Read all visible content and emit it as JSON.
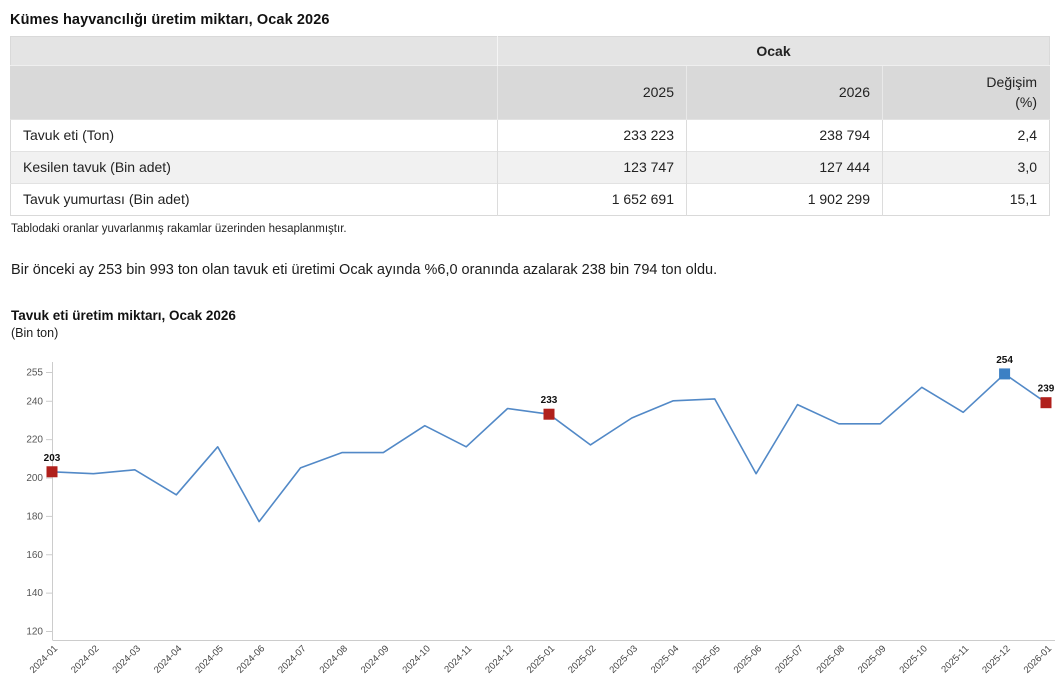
{
  "page": {
    "title": "Kümes hayvancılığı üretim miktarı, Ocak 2026",
    "footnote": "Tablodaki oranlar yuvarlanmış rakamlar üzerinden hesaplanmıştır.",
    "paragraph": "Bir önceki ay 253 bin 993 ton olan tavuk eti üretimi Ocak ayında %6,0 oranında azalarak 238 bin 794 ton oldu."
  },
  "table": {
    "group_header": "Ocak",
    "col_2025": "2025",
    "col_2026": "2026",
    "col_change": [
      "Değişim",
      "(%)"
    ],
    "rows": [
      {
        "label": "Tavuk eti (Ton)",
        "y2025": "233 223",
        "y2026": "238 794",
        "change": "2,4"
      },
      {
        "label": "Kesilen tavuk (Bin adet)",
        "y2025": "123 747",
        "y2026": "127 444",
        "change": "3,0"
      },
      {
        "label": "Tavuk yumurtası (Bin adet)",
        "y2025": "1 652 691",
        "y2026": "1 902 299",
        "change": "15,1"
      }
    ]
  },
  "chart_data": {
    "type": "line",
    "title": "Tavuk eti üretim miktarı, Ocak 2026",
    "subtitle": "(Bin ton)",
    "x": [
      "2024-01",
      "2024-02",
      "2024-03",
      "2024-04",
      "2024-05",
      "2024-06",
      "2024-07",
      "2024-08",
      "2024-09",
      "2024-10",
      "2024-11",
      "2024-12",
      "2025-01",
      "2025-02",
      "2025-03",
      "2025-04",
      "2025-05",
      "2025-06",
      "2025-07",
      "2025-08",
      "2025-09",
      "2025-10",
      "2025-11",
      "2025-12",
      "2026-01"
    ],
    "values": [
      203,
      202,
      204,
      191,
      216,
      177,
      205,
      213,
      213,
      227,
      216,
      236,
      233,
      217,
      231,
      240,
      241,
      202,
      238,
      228,
      228,
      247,
      234,
      254,
      239
    ],
    "labeled_points": [
      {
        "index": 0,
        "label": "203",
        "marker": "red"
      },
      {
        "index": 12,
        "label": "233",
        "marker": "red"
      },
      {
        "index": 23,
        "label": "254",
        "marker": "blue"
      },
      {
        "index": 24,
        "label": "239",
        "marker": "red"
      }
    ],
    "yticks": [
      255,
      240,
      220,
      200,
      180,
      160,
      140,
      120
    ],
    "ylim": [
      115,
      255
    ],
    "grid": false,
    "legend": false,
    "line_color": "#5289c7",
    "marker_red": "#b0201c",
    "marker_blue": "#3c80c4"
  }
}
